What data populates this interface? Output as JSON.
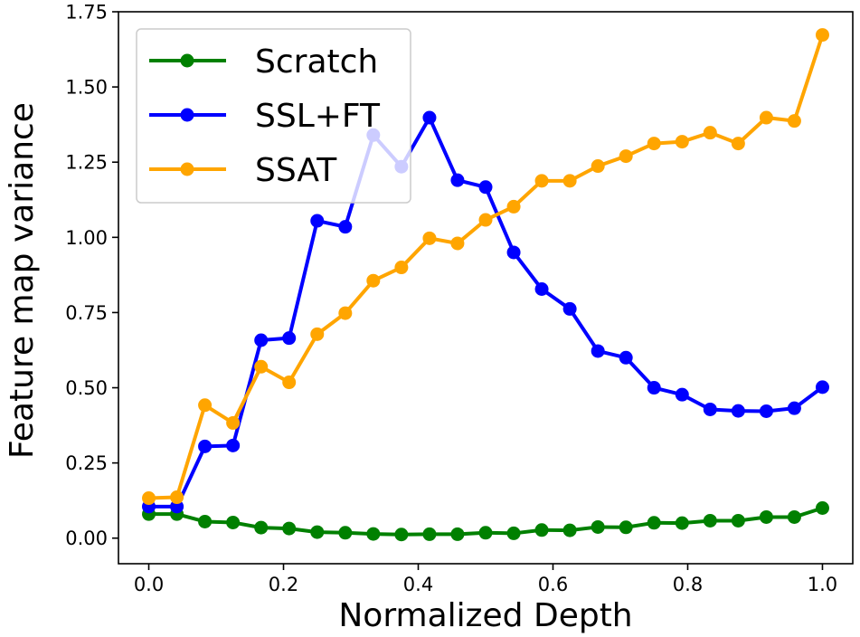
{
  "chart_data": {
    "type": "line",
    "title": "",
    "xlabel": "Normalized Depth",
    "ylabel": "Feature map variance",
    "xlim": [
      -0.045,
      1.045
    ],
    "ylim": [
      -0.085,
      1.75
    ],
    "xticks": [
      0.0,
      0.2,
      0.4,
      0.6,
      0.8,
      1.0
    ],
    "xtick_labels": [
      "0.0",
      "0.2",
      "0.4",
      "0.6",
      "0.8",
      "1.0"
    ],
    "yticks": [
      0.0,
      0.25,
      0.5,
      0.75,
      1.0,
      1.25,
      1.5,
      1.75
    ],
    "ytick_labels": [
      "0.00",
      "0.25",
      "0.50",
      "0.75",
      "1.00",
      "1.25",
      "1.50",
      "1.75"
    ],
    "grid": false,
    "legend_position": "top-left",
    "x": [
      0.0,
      0.0417,
      0.0833,
      0.125,
      0.1667,
      0.2083,
      0.25,
      0.2917,
      0.3333,
      0.375,
      0.4167,
      0.4583,
      0.5,
      0.5417,
      0.5833,
      0.625,
      0.6667,
      0.7083,
      0.75,
      0.7917,
      0.8333,
      0.875,
      0.9167,
      0.9583,
      1.0
    ],
    "series": [
      {
        "name": "Scratch",
        "color": "#008000",
        "values": [
          0.08,
          0.08,
          0.055,
          0.052,
          0.035,
          0.032,
          0.02,
          0.018,
          0.014,
          0.012,
          0.013,
          0.013,
          0.018,
          0.016,
          0.027,
          0.026,
          0.037,
          0.036,
          0.051,
          0.05,
          0.058,
          0.058,
          0.07,
          0.07,
          0.1
        ]
      },
      {
        "name": "SSL+FT",
        "color": "#0000ff",
        "values": [
          0.105,
          0.105,
          0.305,
          0.308,
          0.658,
          0.665,
          1.055,
          1.035,
          1.34,
          1.235,
          1.398,
          1.19,
          1.167,
          0.95,
          0.828,
          0.762,
          0.622,
          0.6,
          0.5,
          0.477,
          0.428,
          0.423,
          0.422,
          0.432,
          0.502
        ]
      },
      {
        "name": "SSAT",
        "color": "#ffa500",
        "values": [
          0.133,
          0.136,
          0.442,
          0.383,
          0.57,
          0.518,
          0.678,
          0.748,
          0.856,
          0.9,
          0.997,
          0.98,
          1.058,
          1.102,
          1.188,
          1.188,
          1.237,
          1.27,
          1.312,
          1.318,
          1.348,
          1.312,
          1.398,
          1.387,
          1.673
        ]
      }
    ]
  }
}
